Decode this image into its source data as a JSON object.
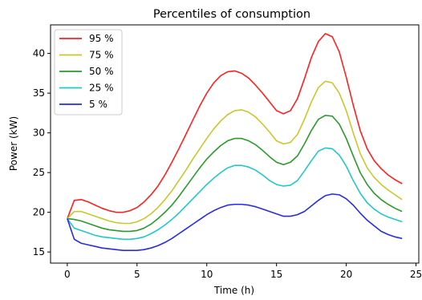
{
  "chart_data": {
    "type": "line",
    "title": "Percentiles of consumption",
    "xlabel": "Time (h)",
    "ylabel": "Power (kW)",
    "xlim": [
      -1.2,
      25.2
    ],
    "ylim": [
      13.6,
      43.6
    ],
    "xticks": [
      0,
      5,
      10,
      15,
      20,
      25
    ],
    "yticks": [
      15,
      20,
      25,
      30,
      35,
      40
    ],
    "grid": false,
    "legend_position": "top-left",
    "x": [
      0,
      0.5,
      1,
      1.5,
      2,
      2.5,
      3,
      3.5,
      4,
      4.5,
      5,
      5.5,
      6,
      6.5,
      7,
      7.5,
      8,
      8.5,
      9,
      9.5,
      10,
      10.5,
      11,
      11.5,
      12,
      12.5,
      13,
      13.5,
      14,
      14.5,
      15,
      15.5,
      16,
      16.5,
      17,
      17.5,
      18,
      18.5,
      19,
      19.5,
      20,
      20.5,
      21,
      21.5,
      22,
      22.5,
      23,
      23.5,
      24
    ],
    "series": [
      {
        "name": "95 %",
        "color": "#ff2020",
        "values": [
          19.2,
          21.5,
          21.6,
          21.3,
          20.9,
          20.5,
          20.2,
          20.0,
          20.0,
          20.2,
          20.6,
          21.3,
          22.2,
          23.3,
          24.7,
          26.3,
          28.0,
          29.8,
          31.6,
          33.4,
          35.0,
          36.3,
          37.2,
          37.7,
          37.8,
          37.5,
          36.9,
          36.0,
          35.0,
          33.9,
          32.8,
          32.4,
          32.8,
          34.3,
          36.8,
          39.5,
          41.5,
          42.5,
          42.1,
          40.2,
          37.0,
          33.5,
          30.3,
          28.0,
          26.5,
          25.5,
          24.7,
          24.1,
          23.6
        ]
      },
      {
        "name": "75 %",
        "color": "#c8c82a",
        "values": [
          19.2,
          20.1,
          20.1,
          19.8,
          19.5,
          19.2,
          18.9,
          18.7,
          18.6,
          18.6,
          18.8,
          19.2,
          19.8,
          20.6,
          21.6,
          22.7,
          24.0,
          25.3,
          26.7,
          28.0,
          29.3,
          30.5,
          31.5,
          32.3,
          32.8,
          32.9,
          32.6,
          32.0,
          31.1,
          30.1,
          29.0,
          28.6,
          28.8,
          29.8,
          31.7,
          33.9,
          35.7,
          36.5,
          36.3,
          35.0,
          32.8,
          30.0,
          27.4,
          25.6,
          24.4,
          23.5,
          22.8,
          22.2,
          21.6
        ]
      },
      {
        "name": "50 %",
        "color": "#2a9a2a",
        "values": [
          19.2,
          19.1,
          18.9,
          18.6,
          18.3,
          18.0,
          17.8,
          17.7,
          17.6,
          17.6,
          17.7,
          18.0,
          18.5,
          19.2,
          20.0,
          20.9,
          22.0,
          23.2,
          24.4,
          25.6,
          26.7,
          27.6,
          28.4,
          29.0,
          29.3,
          29.3,
          29.0,
          28.5,
          27.8,
          27.0,
          26.3,
          26.0,
          26.3,
          27.1,
          28.6,
          30.3,
          31.7,
          32.2,
          32.1,
          31.1,
          29.3,
          27.1,
          25.0,
          23.5,
          22.4,
          21.6,
          21.0,
          20.5,
          20.1
        ]
      },
      {
        "name": "25 %",
        "color": "#22c8c8",
        "values": [
          19.2,
          18.0,
          17.7,
          17.4,
          17.1,
          16.9,
          16.8,
          16.7,
          16.6,
          16.6,
          16.7,
          16.9,
          17.3,
          17.8,
          18.4,
          19.1,
          19.9,
          20.8,
          21.7,
          22.6,
          23.5,
          24.3,
          25.0,
          25.6,
          25.9,
          25.9,
          25.7,
          25.3,
          24.7,
          24.0,
          23.5,
          23.3,
          23.4,
          24.0,
          25.2,
          26.5,
          27.7,
          28.1,
          28.0,
          27.2,
          25.8,
          24.0,
          22.4,
          21.2,
          20.4,
          19.8,
          19.4,
          19.1,
          18.8
        ]
      },
      {
        "name": "5 %",
        "color": "#2a2ae8",
        "values": [
          19.2,
          16.6,
          16.1,
          15.9,
          15.7,
          15.5,
          15.4,
          15.3,
          15.2,
          15.2,
          15.2,
          15.3,
          15.5,
          15.8,
          16.2,
          16.7,
          17.3,
          17.9,
          18.5,
          19.1,
          19.7,
          20.2,
          20.6,
          20.9,
          21.0,
          21.0,
          20.9,
          20.7,
          20.4,
          20.1,
          19.8,
          19.5,
          19.5,
          19.7,
          20.1,
          20.8,
          21.5,
          22.1,
          22.3,
          22.2,
          21.7,
          20.9,
          19.9,
          19.0,
          18.3,
          17.6,
          17.2,
          16.9,
          16.7
        ]
      }
    ]
  }
}
